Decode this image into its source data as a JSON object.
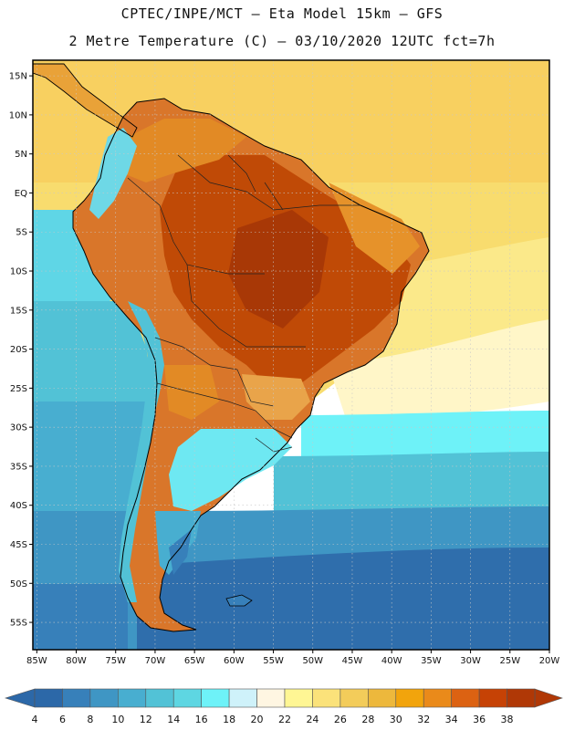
{
  "header": {
    "title_line1": "CPTEC/INPE/MCT –  Eta Model 15km – GFS",
    "title_line2": "2 Metre Temperature (C) – 03/10/2020 12UTC fct=7h"
  },
  "map": {
    "lat_labels": [
      "15N",
      "10N",
      "5N",
      "EQ",
      "5S",
      "10S",
      "15S",
      "20S",
      "25S",
      "30S",
      "35S",
      "40S",
      "45S",
      "50S",
      "55S"
    ],
    "lon_labels": [
      "85W",
      "80W",
      "75W",
      "70W",
      "65W",
      "60W",
      "55W",
      "50W",
      "45W",
      "40W",
      "35W",
      "30W",
      "25W",
      "20W"
    ],
    "lat_range": [
      17,
      -58.5
    ],
    "lon_range": [
      -85.5,
      -20
    ]
  },
  "colorbar": {
    "labels": [
      "4",
      "6",
      "8",
      "10",
      "12",
      "14",
      "16",
      "18",
      "20",
      "22",
      "24",
      "26",
      "28",
      "30",
      "32",
      "34",
      "36",
      "38"
    ],
    "colors": [
      "#2c68a8",
      "#3780ba",
      "#3f96c4",
      "#48aed0",
      "#52c2d6",
      "#5ed6e2",
      "#6ef2f8",
      "#cff2fa",
      "#fff6e2",
      "#fff694",
      "#fbe27a",
      "#f3cc5a",
      "#edb83c",
      "#f2a40c",
      "#ea8a1a",
      "#dc6212",
      "#c64205",
      "#b03806"
    ]
  }
}
